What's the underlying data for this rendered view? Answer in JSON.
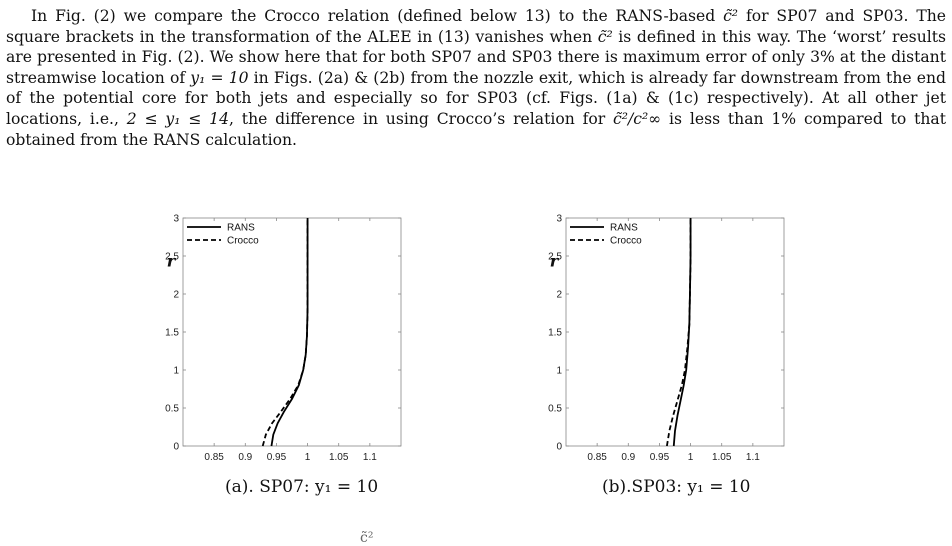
{
  "paragraph": [
    "In Fig. (2) we compare the Crocco relation (defined below 13) to the RANS-based ",
    "c̃²",
    " for SP07 and SP03. The square brackets in the transformation of the ALEE in (13) vanishes when ",
    "c̃²",
    " is defined in this way. The ‘worst’ results are presented in Fig. (2). We show here that for both SP07 and SP03 there is maximum error of only 3% at the distant streamwise location of ",
    "y₁ = 10",
    " in Figs. (2a) & (2b) from the nozzle exit, which is already far downstream from the end of the potential core for both jets and especially so for SP03 (cf. Figs. (1a) & (1c) respectively). At all other jet locations, i.e., ",
    "2 ≤ y₁ ≤ 14",
    ", the difference in using Crocco’s relation for ",
    "c̃²/c²∞",
    " is less than 1% compared to that obtained from the RANS calculation."
  ],
  "figures": [
    {
      "caption": "(a). SP07: y₁ = 10",
      "ylabel": "r",
      "xticks": [
        "0.85",
        "0.9",
        "0.95",
        "1",
        "1.05",
        "1.1"
      ],
      "yticks": [
        "0",
        "0.5",
        "1",
        "1.5",
        "2",
        "2.5",
        "3"
      ],
      "legend": [
        "RANS",
        "Crocco"
      ]
    },
    {
      "caption": "(b).SP03: y₁ = 10",
      "ylabel": "r",
      "xticks": [
        "0.85",
        "0.9",
        "0.95",
        "1",
        "1.05",
        "1.1"
      ],
      "yticks": [
        "0",
        "0.5",
        "1",
        "1.5",
        "2",
        "2.5",
        "3"
      ],
      "legend": [
        "RANS",
        "Crocco"
      ]
    }
  ],
  "bottom_fragment": "c̃²",
  "chart_data": [
    {
      "type": "line",
      "title": "",
      "xlabel": "",
      "ylabel": "r",
      "xlim": [
        0.8,
        1.15
      ],
      "ylim": [
        0,
        3
      ],
      "grid": false,
      "legend_position": "top-left",
      "series": [
        {
          "name": "RANS",
          "style": "solid",
          "color": "#000000",
          "x": [
            0.942,
            0.945,
            0.952,
            0.962,
            0.975,
            0.986,
            0.993,
            0.997,
            0.999,
            1.0,
            1.0,
            1.0
          ],
          "y": [
            0,
            0.15,
            0.3,
            0.45,
            0.62,
            0.8,
            1.0,
            1.2,
            1.45,
            1.8,
            2.4,
            3.0
          ]
        },
        {
          "name": "Crocco",
          "style": "dashed",
          "color": "#000000",
          "x": [
            0.928,
            0.933,
            0.943,
            0.957,
            0.972,
            0.985,
            0.993,
            0.997,
            0.999,
            1.0,
            1.0,
            1.0
          ],
          "y": [
            0,
            0.15,
            0.3,
            0.45,
            0.62,
            0.8,
            1.0,
            1.2,
            1.45,
            1.8,
            2.4,
            3.0
          ]
        }
      ]
    },
    {
      "type": "line",
      "title": "",
      "xlabel": "",
      "ylabel": "r",
      "xlim": [
        0.8,
        1.15
      ],
      "ylim": [
        0,
        3
      ],
      "grid": false,
      "legend_position": "top-left",
      "series": [
        {
          "name": "RANS",
          "style": "solid",
          "color": "#000000",
          "x": [
            0.973,
            0.975,
            0.979,
            0.984,
            0.989,
            0.993,
            0.996,
            0.998,
            0.999,
            1.0,
            1.0
          ],
          "y": [
            0,
            0.2,
            0.4,
            0.6,
            0.8,
            1.0,
            1.3,
            1.6,
            2.0,
            2.5,
            3.0
          ]
        },
        {
          "name": "Crocco",
          "style": "dashed",
          "color": "#000000",
          "x": [
            0.962,
            0.966,
            0.972,
            0.979,
            0.986,
            0.991,
            0.995,
            0.998,
            0.999,
            1.0,
            1.0
          ],
          "y": [
            0,
            0.2,
            0.4,
            0.6,
            0.8,
            1.0,
            1.3,
            1.6,
            2.0,
            2.5,
            3.0
          ]
        }
      ]
    }
  ]
}
